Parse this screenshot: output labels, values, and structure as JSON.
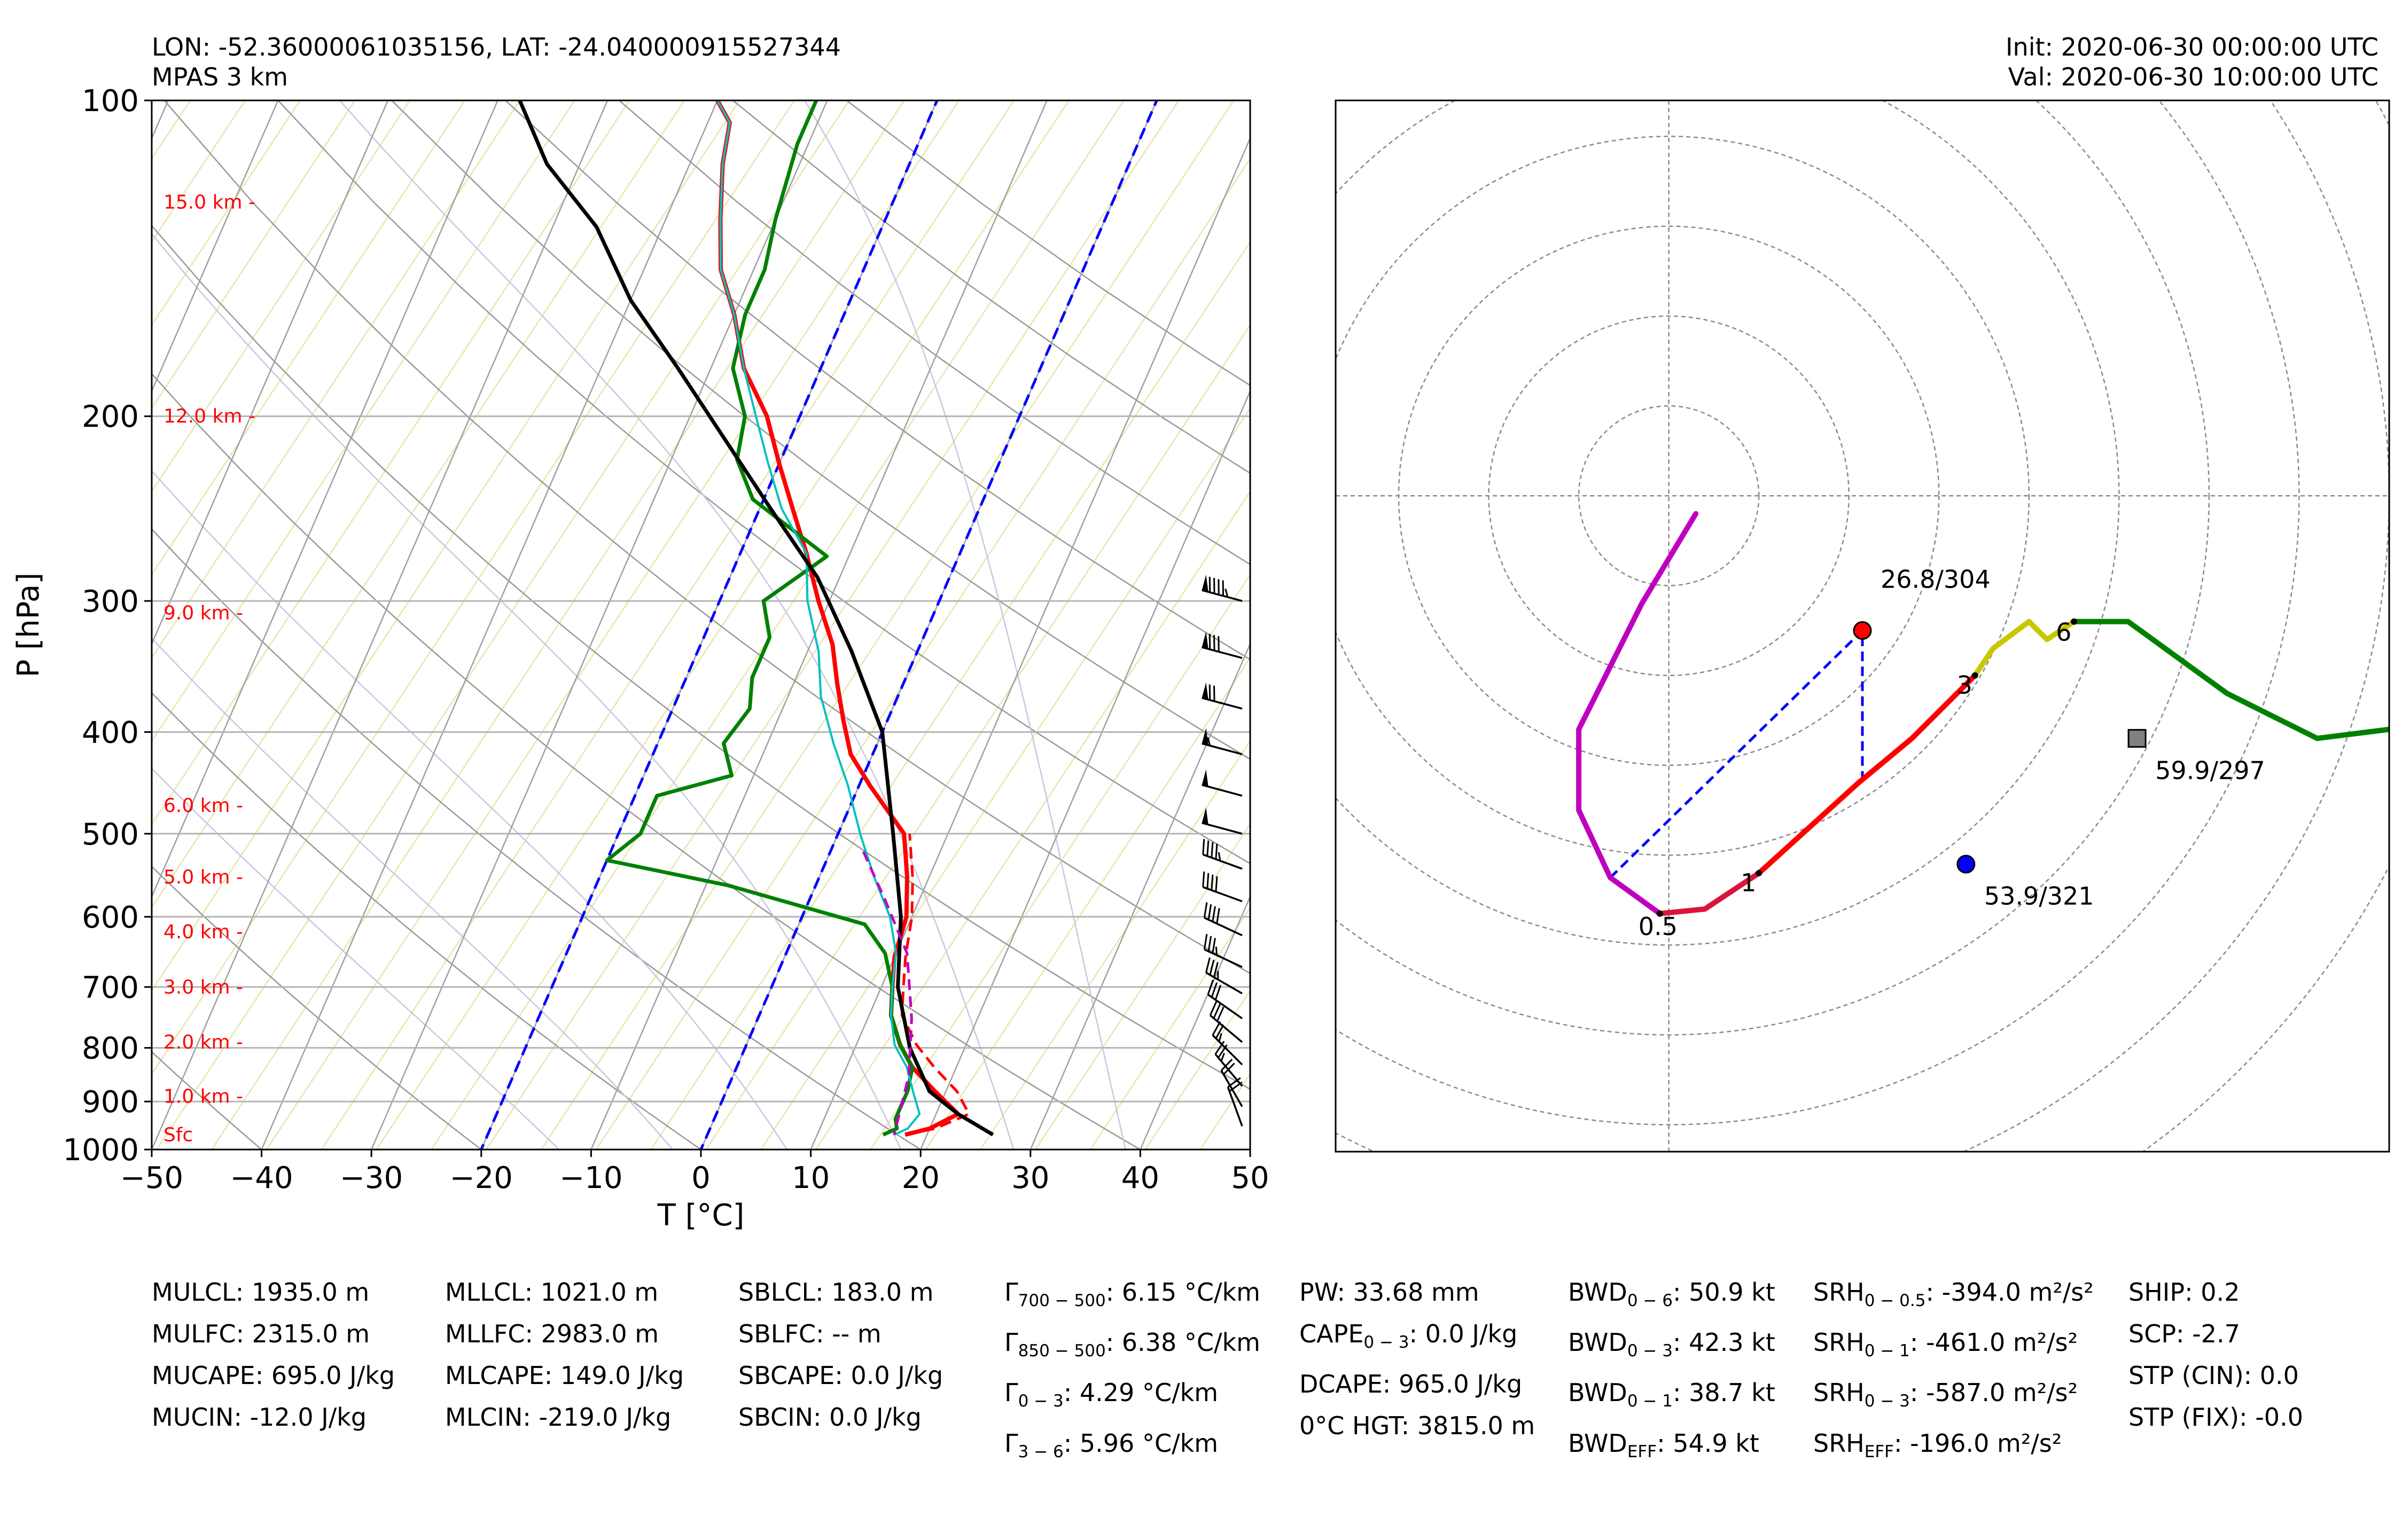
{
  "header": {
    "location": "LON: -52.36000061035156, LAT: -24.040000915527344",
    "model": "MPAS 3 km",
    "init": "Init: 2020-06-30 00:00:00 UTC",
    "valid": "Val: 2020-06-30 10:00:00 UTC"
  },
  "colors": {
    "temperature": "#ff0000",
    "dewpoint": "#008000",
    "wetbulb": "#00c0c0",
    "parcel": "#000000",
    "virtual_temp": "#ff0000",
    "dcape_parcel": "#c000c0",
    "isotherm_0_20": "#0000ff",
    "dry_adiabat": "#999999",
    "moist_adiabat": "#c8c8e0",
    "mixing_ratio": "#e6e6b0",
    "height_label": "#ff0000"
  },
  "chart_data": [
    {
      "type": "line",
      "subtype": "skew-t log-p diagram",
      "xlabel": "T [°C]",
      "ylabel": "P [hPa]",
      "xlim": [
        -50,
        50
      ],
      "ylim": [
        1000,
        100
      ],
      "y_scale": "log",
      "x_ticks": [
        "−50",
        "−40",
        "−30",
        "−20",
        "−10",
        "0",
        "10",
        "20",
        "30",
        "40",
        "50"
      ],
      "y_ticks": [
        "100",
        "200",
        "300",
        "400",
        "500",
        "600",
        "700",
        "800",
        "900",
        "1000"
      ],
      "grid": true,
      "height_labels": [
        {
          "label": "15.0 km -",
          "p": 125
        },
        {
          "label": "12.0 km -",
          "p": 200
        },
        {
          "label": "9.0 km -",
          "p": 308
        },
        {
          "label": "6.0 km -",
          "p": 470
        },
        {
          "label": "5.0 km -",
          "p": 550
        },
        {
          "label": "4.0 km -",
          "p": 620
        },
        {
          "label": "3.0 km -",
          "p": 700
        },
        {
          "label": "2.0 km -",
          "p": 790
        },
        {
          "label": "1.0 km -",
          "p": 890
        },
        {
          "label": "Sfc",
          "p": 968
        }
      ],
      "series": [
        {
          "key": "temperature",
          "points": [
            [
              18,
              968
            ],
            [
              20,
              955
            ],
            [
              22,
              925
            ],
            [
              19,
              880
            ],
            [
              16,
              835
            ],
            [
              14,
              795
            ],
            [
              12,
              745
            ],
            [
              11,
              700
            ],
            [
              10,
              655
            ],
            [
              9.5,
              600
            ],
            [
              8,
              550
            ],
            [
              6,
              500
            ],
            [
              1,
              450
            ],
            [
              -2,
              420
            ],
            [
              -4,
              390
            ],
            [
              -6,
              360
            ],
            [
              -8,
              330
            ],
            [
              -11,
              300
            ],
            [
              -14,
              270
            ],
            [
              -17,
              245
            ],
            [
              -20,
              222
            ],
            [
              -23,
              200
            ],
            [
              -27,
              180
            ],
            [
              -30,
              160
            ],
            [
              -33,
              145
            ],
            [
              -35,
              130
            ],
            [
              -37,
              115
            ],
            [
              -38,
              105
            ],
            [
              -40,
              100
            ]
          ]
        },
        {
          "key": "virtual_temp",
          "points": [
            [
              18,
              968
            ],
            [
              20.5,
              955
            ],
            [
              23,
              925
            ],
            [
              21,
              880
            ],
            [
              18,
              835
            ],
            [
              15.5,
              795
            ],
            [
              13,
              745
            ],
            [
              12,
              700
            ],
            [
              11,
              655
            ],
            [
              10,
              600
            ],
            [
              8.5,
              550
            ],
            [
              6.5,
              500
            ]
          ]
        },
        {
          "key": "dewpoint",
          "points": [
            [
              16,
              968
            ],
            [
              17,
              955
            ],
            [
              16.5,
              935
            ],
            [
              16.5,
              880
            ],
            [
              16,
              835
            ],
            [
              14,
              795
            ],
            [
              12,
              745
            ],
            [
              11,
              700
            ],
            [
              9,
              650
            ],
            [
              6,
              610
            ],
            [
              -8,
              560
            ],
            [
              -20,
              530
            ],
            [
              -18,
              500
            ],
            [
              -18,
              460
            ],
            [
              -12,
              440
            ],
            [
              -14,
              410
            ],
            [
              -13,
              380
            ],
            [
              -14,
              355
            ],
            [
              -14,
              325
            ],
            [
              -16,
              300
            ],
            [
              -12,
              272
            ],
            [
              -21,
              240
            ],
            [
              -24,
              220
            ],
            [
              -25,
              200
            ],
            [
              -28,
              180
            ],
            [
              -29,
              160
            ],
            [
              -29,
              145
            ],
            [
              -30,
              130
            ],
            [
              -31,
              110
            ],
            [
              -31,
              100
            ]
          ]
        },
        {
          "key": "wetbulb",
          "points": [
            [
              17,
              968
            ],
            [
              18,
              955
            ],
            [
              18.5,
              925
            ],
            [
              17,
              880
            ],
            [
              15.5,
              835
            ],
            [
              13.5,
              795
            ],
            [
              12,
              745
            ],
            [
              11,
              700
            ],
            [
              10,
              650
            ],
            [
              8,
              600
            ],
            [
              5,
              550
            ],
            [
              2,
              500
            ],
            [
              -1,
              450
            ],
            [
              -4,
              410
            ],
            [
              -7,
              370
            ],
            [
              -9,
              335
            ],
            [
              -12,
              300
            ],
            [
              -14,
              270
            ],
            [
              -18,
              245
            ],
            [
              -21,
              222
            ],
            [
              -24,
              200
            ],
            [
              -27,
              180
            ],
            [
              -30,
              160
            ],
            [
              -33,
              145
            ],
            [
              -35,
              130
            ],
            [
              -37,
              115
            ],
            [
              -38,
              105
            ],
            [
              -40,
              100
            ]
          ]
        },
        {
          "key": "parcel",
          "points": [
            [
              26,
              968
            ],
            [
              22,
              925
            ],
            [
              18.5,
              880
            ],
            [
              15,
              800
            ],
            [
              11.5,
              700
            ],
            [
              9,
              600
            ],
            [
              5,
              500
            ],
            [
              0,
              400
            ],
            [
              -6,
              335
            ],
            [
              -12,
              285
            ],
            [
              -19,
              245
            ],
            [
              -26,
              210
            ],
            [
              -33,
              180
            ],
            [
              -40,
              155
            ],
            [
              -46,
              132
            ],
            [
              -53,
              115
            ],
            [
              -58,
              100
            ]
          ]
        },
        {
          "key": "dcape_parcel",
          "points": [
            [
              3,
              520
            ],
            [
              7,
              580
            ],
            [
              11,
              650
            ],
            [
              14,
              750
            ],
            [
              16,
              850
            ],
            [
              17,
              968
            ]
          ]
        }
      ],
      "isotherms": [
        0,
        -20
      ],
      "wind_barbs": [
        {
          "p": 300,
          "speed": 95,
          "dir": 285
        },
        {
          "p": 340,
          "speed": 80,
          "dir": 285
        },
        {
          "p": 380,
          "speed": 70,
          "dir": 285
        },
        {
          "p": 420,
          "speed": 55,
          "dir": 285
        },
        {
          "p": 460,
          "speed": 50,
          "dir": 285
        },
        {
          "p": 500,
          "speed": 50,
          "dir": 285
        },
        {
          "p": 540,
          "speed": 45,
          "dir": 290
        },
        {
          "p": 580,
          "speed": 40,
          "dir": 290
        },
        {
          "p": 625,
          "speed": 40,
          "dir": 295
        },
        {
          "p": 670,
          "speed": 35,
          "dir": 295
        },
        {
          "p": 710,
          "speed": 35,
          "dir": 300
        },
        {
          "p": 750,
          "speed": 30,
          "dir": 305
        },
        {
          "p": 790,
          "speed": 30,
          "dir": 310
        },
        {
          "p": 830,
          "speed": 25,
          "dir": 315
        },
        {
          "p": 870,
          "speed": 25,
          "dir": 320
        },
        {
          "p": 910,
          "speed": 20,
          "dir": 330
        },
        {
          "p": 950,
          "speed": 20,
          "dir": 340
        }
      ]
    },
    {
      "type": "line",
      "subtype": "hodograph",
      "grid": true,
      "grid_rings_kt": [
        10,
        20,
        30,
        40,
        50,
        60,
        70,
        80,
        90
      ],
      "xlim": [
        -37,
        80
      ],
      "ylim": [
        -73,
        44
      ],
      "segments": [
        {
          "name": "0-0.5 km",
          "color": "#c000c0",
          "points": [
            [
              3,
              -2
            ],
            [
              -3,
              -12
            ],
            [
              -10,
              -26
            ],
            [
              -10,
              -35
            ],
            [
              -6.5,
              -42.5
            ],
            [
              -1,
              -46.5
            ]
          ]
        },
        {
          "name": "0.5-1 km",
          "color": "#dc143c",
          "points": [
            [
              -1,
              -46.5
            ],
            [
              4,
              -46
            ],
            [
              10,
              -42
            ]
          ]
        },
        {
          "name": "1-3 km",
          "color": "#ff0000",
          "points": [
            [
              10,
              -42
            ],
            [
              21,
              -32
            ],
            [
              27,
              -27
            ],
            [
              34,
              -20
            ]
          ]
        },
        {
          "name": "3-6 km",
          "color": "#c8c800",
          "points": [
            [
              34,
              -20
            ],
            [
              36,
              -17
            ],
            [
              40,
              -14
            ],
            [
              42,
              -16
            ],
            [
              45,
              -14
            ]
          ]
        },
        {
          "name": "6-12 km",
          "color": "#008000",
          "points": [
            [
              45,
              -14
            ],
            [
              51,
              -14
            ],
            [
              62,
              -22
            ],
            [
              72,
              -27
            ],
            [
              80,
              -26
            ]
          ]
        }
      ],
      "labels": [
        {
          "text": "0.5",
          "u": -1,
          "v": -46.5
        },
        {
          "text": "1",
          "u": 10,
          "v": -42
        },
        {
          "text": "3",
          "u": 34,
          "v": -20
        },
        {
          "text": "6",
          "u": 45,
          "v": -14
        }
      ],
      "markers": [
        {
          "name": "critical-angle-point",
          "label": "26.8/304",
          "u": 21.5,
          "v": -15,
          "color": "#ff0000",
          "shape": "circle"
        },
        {
          "name": "left-mover",
          "label": "53.9/321",
          "u": 33,
          "v": -41,
          "color": "#0000ff",
          "shape": "circle"
        },
        {
          "name": "mean-wind",
          "label": "59.9/297",
          "u": 52,
          "v": -27,
          "color": "#808080",
          "shape": "square"
        }
      ]
    }
  ],
  "parameters": [
    [
      "MULCL: 1935.0 m",
      "MULFC: 2315.0 m",
      "MUCAPE: 695.0 J/kg",
      "MUCIN: -12.0 J/kg"
    ],
    [
      "MLLCL: 1021.0 m",
      "MLLFC: 2983.0 m",
      "MLCAPE: 149.0 J/kg",
      "MLCIN: -219.0 J/kg"
    ],
    [
      "SBLCL: 183.0 m",
      "SBLFC: -- m",
      "SBCAPE: 0.0 J/kg",
      "SBCIN: 0.0 J/kg"
    ],
    [
      {
        "pre": "Γ",
        "sub": "700 − 500",
        "post": ": 6.15 °C/km"
      },
      {
        "pre": "Γ",
        "sub": "850 − 500",
        "post": ": 6.38 °C/km"
      },
      {
        "pre": "Γ",
        "sub": "0 − 3",
        "post": ": 4.29 °C/km"
      },
      {
        "pre": "Γ",
        "sub": "3 − 6",
        "post": ": 5.96 °C/km"
      }
    ],
    [
      "PW: 33.68 mm",
      {
        "pre": "CAPE",
        "sub": "0 − 3",
        "post": ": 0.0 J/kg"
      },
      "DCAPE: 965.0 J/kg",
      "0°C HGT: 3815.0 m"
    ],
    [
      {
        "pre": "BWD",
        "sub": "0 − 6",
        "post": ": 50.9 kt"
      },
      {
        "pre": "BWD",
        "sub": "0 − 3",
        "post": ": 42.3 kt"
      },
      {
        "pre": "BWD",
        "sub": "0 − 1",
        "post": ": 38.7 kt"
      },
      {
        "pre": "BWD",
        "sub": "EFF",
        "post": ": 54.9 kt"
      }
    ],
    [
      {
        "pre": "SRH",
        "sub": "0 − 0.5",
        "post": ": -394.0 m²/s²"
      },
      {
        "pre": "SRH",
        "sub": "0 − 1",
        "post": ": -461.0 m²/s²"
      },
      {
        "pre": "SRH",
        "sub": "0 − 3",
        "post": ": -587.0 m²/s²"
      },
      {
        "pre": "SRH",
        "sub": "EFF",
        "post": ": -196.0 m²/s²"
      }
    ],
    [
      "SHIP: 0.2",
      "SCP: -2.7",
      "STP (CIN): 0.0",
      "STP (FIX): -0.0"
    ]
  ]
}
